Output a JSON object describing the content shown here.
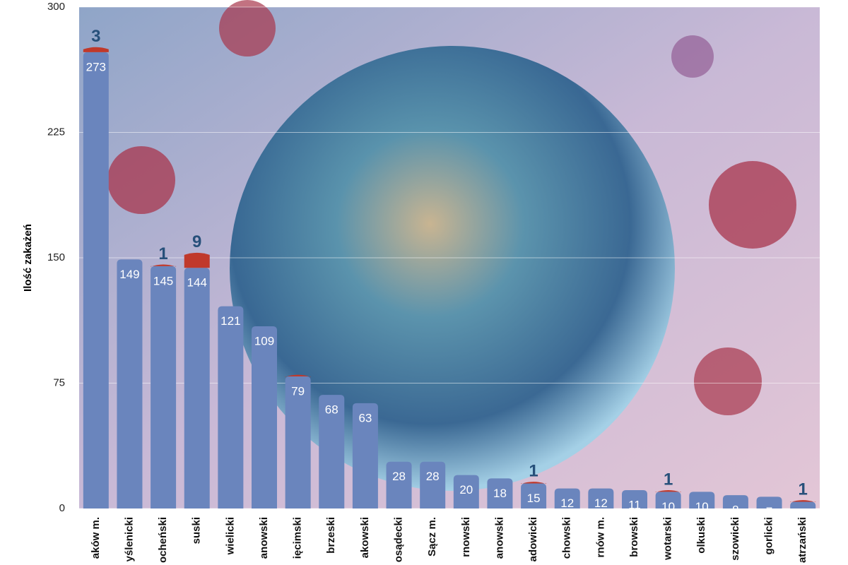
{
  "chart_data": {
    "type": "stacked_bar",
    "y_label": "Ilość zakażeń",
    "categories": [
      "aków m.",
      "yślenicki",
      "ocheński",
      "suski",
      "wielicki",
      "anowski",
      "ięcimski",
      "brzeski",
      "akowski",
      "osądecki",
      "Sącz m.",
      "rnowski",
      "anowski",
      "adowicki",
      "chowski",
      "rnów m.",
      "browski",
      "wotarski",
      "olkuski",
      "szowicki",
      "gorlicki",
      "atrzański"
    ],
    "series": [
      {
        "color": "#6a85bd",
        "values": [
          273,
          149,
          145,
          144,
          121,
          109,
          79,
          68,
          63,
          28,
          28,
          20,
          18,
          15,
          12,
          12,
          11,
          10,
          10,
          8,
          7,
          4
        ]
      },
      {
        "color": "#c0392b",
        "values": [
          3,
          0,
          1,
          9,
          0,
          0,
          1,
          0,
          0,
          0,
          0,
          0,
          0,
          1,
          0,
          0,
          0,
          1,
          0,
          0,
          0,
          1
        ],
        "value_labels": [
          "3",
          null,
          "1",
          "9",
          null,
          null,
          null,
          null,
          null,
          null,
          null,
          null,
          null,
          "1",
          null,
          null,
          null,
          "1",
          null,
          null,
          null,
          "1"
        ]
      }
    ],
    "ylim": [
      0,
      300
    ],
    "yticks": [
      0,
      75,
      150,
      225,
      300
    ],
    "grid": true
  }
}
